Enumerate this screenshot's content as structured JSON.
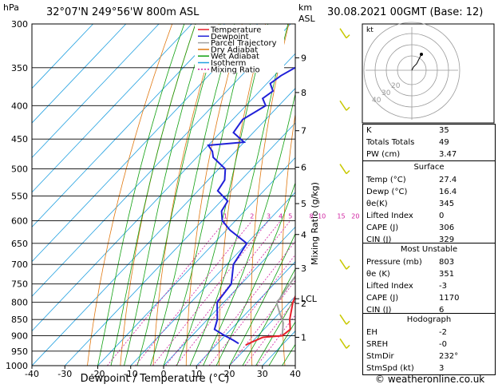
{
  "header": {
    "left_unit": "hPa",
    "location": "32°07'N  249°56'W  800m  ASL",
    "right_unit_km": "km",
    "right_unit_asl": "ASL",
    "datetime": "30.08.2021  00GMT  (Base: 12)"
  },
  "footer": {
    "copyright": "© weatheronline.co.uk"
  },
  "colors": {
    "temperature": "#e8202a",
    "dewpoint": "#2020d8",
    "parcel": "#a0a0a0",
    "dry_adiabat": "#e07810",
    "wet_adiabat": "#10a010",
    "isotherm": "#20a0e0",
    "mixing_ratio": "#d020a0",
    "wind": "#c8c800"
  },
  "chart_data": {
    "type": "skew-t",
    "xlabel": "Dewpoint / Temperature (°C)",
    "ylabel_right": "Mixing Ratio (g/kg)",
    "xlim": [
      -40,
      40
    ],
    "x_ticks": [
      "-40",
      "-30",
      "-20",
      "-10",
      "0",
      "10",
      "20",
      "30",
      "40"
    ],
    "pressure_ticks": [
      "300",
      "350",
      "400",
      "450",
      "500",
      "550",
      "600",
      "650",
      "700",
      "750",
      "800",
      "850",
      "900",
      "950",
      "1000"
    ],
    "km_ticks": [
      {
        "label": "9",
        "p": 338
      },
      {
        "label": "8",
        "p": 382
      },
      {
        "label": "7",
        "p": 437
      },
      {
        "label": "6",
        "p": 497
      },
      {
        "label": "5",
        "p": 565
      },
      {
        "label": "4",
        "p": 630
      },
      {
        "label": "3",
        "p": 710
      },
      {
        "label": "LCL",
        "p": 790
      },
      {
        "label": "2",
        "p": 803
      },
      {
        "label": "1",
        "p": 905
      }
    ],
    "mixing_ratio_labels": [
      "1",
      "2",
      "3",
      "4",
      "5",
      "8",
      "10",
      "15",
      "20",
      "25"
    ],
    "legend": [
      "Temperature",
      "Dewpoint",
      "Parcel Trajectory",
      "Dry Adiabat",
      "Wet Adiabat",
      "Isotherm",
      "Mixing Ratio"
    ],
    "temperature": [
      [
        300,
        -33
      ],
      [
        330,
        -27
      ],
      [
        350,
        -24
      ],
      [
        400,
        -16
      ],
      [
        450,
        -9
      ],
      [
        500,
        -4
      ],
      [
        550,
        1
      ],
      [
        600,
        5
      ],
      [
        650,
        10
      ],
      [
        700,
        14
      ],
      [
        750,
        18
      ],
      [
        800,
        21
      ],
      [
        850,
        25
      ],
      [
        880,
        28
      ],
      [
        900,
        27.4
      ],
      [
        905,
        22
      ],
      [
        920,
        20
      ],
      [
        930,
        19
      ]
    ],
    "dewpoint": [
      [
        300,
        -44
      ],
      [
        310,
        -49
      ],
      [
        320,
        -47
      ],
      [
        335,
        -48
      ],
      [
        345,
        -45
      ],
      [
        360,
        -48
      ],
      [
        370,
        -49
      ],
      [
        380,
        -46
      ],
      [
        390,
        -47
      ],
      [
        400,
        -44
      ],
      [
        420,
        -47
      ],
      [
        440,
        -46
      ],
      [
        455,
        -40
      ],
      [
        460,
        -50
      ],
      [
        470,
        -47
      ],
      [
        480,
        -45
      ],
      [
        500,
        -38
      ],
      [
        520,
        -35
      ],
      [
        540,
        -34
      ],
      [
        560,
        -28
      ],
      [
        580,
        -27
      ],
      [
        600,
        -24
      ],
      [
        620,
        -19
      ],
      [
        650,
        -10
      ],
      [
        700,
        -8
      ],
      [
        750,
        -3
      ],
      [
        800,
        -2
      ],
      [
        850,
        3
      ],
      [
        880,
        5
      ],
      [
        900,
        10
      ],
      [
        915,
        14
      ],
      [
        925,
        16.4
      ]
    ],
    "parcel": [
      [
        380,
        -17
      ],
      [
        420,
        -11
      ],
      [
        460,
        -6
      ],
      [
        500,
        -2
      ],
      [
        560,
        3
      ],
      [
        620,
        9
      ],
      [
        680,
        13
      ],
      [
        720,
        14
      ],
      [
        760,
        15
      ],
      [
        790,
        16
      ],
      [
        800,
        16
      ],
      [
        830,
        20
      ],
      [
        860,
        24
      ],
      [
        900,
        27.4
      ]
    ],
    "wind_barbs": [
      {
        "p": 310
      },
      {
        "p": 400
      },
      {
        "p": 500
      },
      {
        "p": 700
      },
      {
        "p": 850
      },
      {
        "p": 925
      }
    ]
  },
  "hodograph": {
    "unit_label": "kt",
    "ring_labels": [
      "40",
      "30",
      "20"
    ]
  },
  "indices": {
    "k": {
      "label": "K",
      "value": "35"
    },
    "tt": {
      "label": "Totals Totals",
      "value": "49"
    },
    "pw": {
      "label": "PW (cm)",
      "value": "3.47"
    }
  },
  "surface": {
    "title": "Surface",
    "temp": {
      "label": "Temp (°C)",
      "value": "27.4"
    },
    "dewp": {
      "label": "Dewp (°C)",
      "value": "16.4"
    },
    "thetae": {
      "label": "θe(K)",
      "value": "345"
    },
    "li": {
      "label": "Lifted Index",
      "value": "0"
    },
    "cape": {
      "label": "CAPE (J)",
      "value": "306"
    },
    "cin": {
      "label": "CIN (J)",
      "value": "329"
    }
  },
  "most_unstable": {
    "title": "Most Unstable",
    "pressure": {
      "label": "Pressure (mb)",
      "value": "803"
    },
    "thetae": {
      "label": "θe (K)",
      "value": "351"
    },
    "li": {
      "label": "Lifted Index",
      "value": "-3"
    },
    "cape": {
      "label": "CAPE (J)",
      "value": "1170"
    },
    "cin": {
      "label": "CIN (J)",
      "value": "6"
    }
  },
  "hodo_stats": {
    "title": "Hodograph",
    "eh": {
      "label": "EH",
      "value": "-2"
    },
    "sreh": {
      "label": "SREH",
      "value": "-0"
    },
    "stmdir": {
      "label": "StmDir",
      "value": "232°"
    },
    "stmspd": {
      "label": "StmSpd (kt)",
      "value": "3"
    }
  }
}
